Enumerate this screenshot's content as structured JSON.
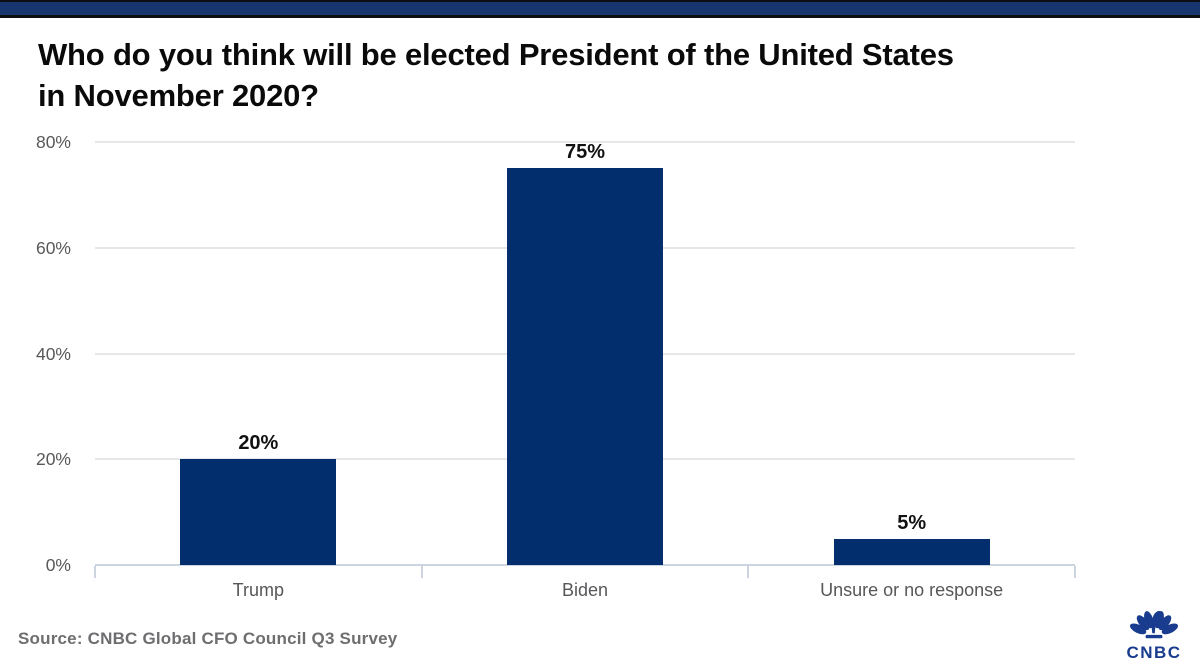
{
  "header": {
    "title_lines": [
      "Who do you think will be elected President of the United States",
      "in November 2020?"
    ]
  },
  "chart_data": {
    "type": "bar",
    "title": "Who do you think will be elected President of the United States in November 2020?",
    "categories": [
      "Trump",
      "Biden",
      "Unsure or no response"
    ],
    "values": [
      20,
      75,
      5
    ],
    "value_labels": [
      "20%",
      "75%",
      "5%"
    ],
    "yticks": [
      0,
      20,
      40,
      60,
      80
    ],
    "ytick_labels": [
      "0%",
      "20%",
      "40%",
      "60%",
      "80%"
    ],
    "ylim": [
      0,
      80
    ],
    "xlabel": "",
    "ylabel": "",
    "grid": true,
    "legend": false,
    "bar_color": "#022e6d"
  },
  "footer": {
    "source": "Source: CNBC Global CFO Council Q3 Survey",
    "logo_text": "CNBC",
    "logo_icon": "nbc-peacock"
  },
  "colors": {
    "topbar": "#17366f",
    "bar": "#022e6d",
    "gridline": "#e7e7e7",
    "axis_line": "#ccd4e0",
    "axis_text": "#58585a",
    "title_text": "#0a0a0a",
    "value_text": "#111111",
    "source_text": "#6e6e71",
    "logo": "#1a3c8f"
  }
}
